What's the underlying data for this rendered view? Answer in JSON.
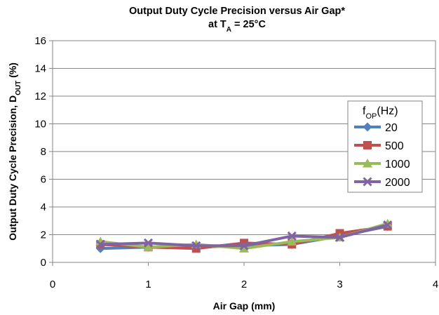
{
  "chart_data": {
    "type": "line",
    "title_line1": "Output Duty Cycle Precision  versus Air Gap*",
    "title_line2_prefix": "at T",
    "title_line2_sub": "A",
    "title_line2_suffix": " = 25°C",
    "xlabel": "Air Gap (mm)",
    "ylabel_prefix": "Output Duty Cycle  Precision,  D",
    "ylabel_sub": "OUT",
    "ylabel_suffix": " (%)",
    "xlim": [
      0,
      4
    ],
    "ylim": [
      0,
      16
    ],
    "x_ticks": [
      "0",
      "1",
      "2",
      "3",
      "4"
    ],
    "y_ticks": [
      "0",
      "2",
      "4",
      "6",
      "8",
      "10",
      "12",
      "14",
      "16"
    ],
    "grid": "horizontal",
    "legend_position": "right",
    "legend_title_prefix": "f",
    "legend_title_sub": "OP",
    "legend_title_suffix": "(Hz)",
    "x": [
      0.5,
      1.0,
      1.5,
      2.0,
      2.5,
      3.0,
      3.5
    ],
    "series": [
      {
        "name": "20",
        "color": "#4f81bd",
        "marker": "diamond",
        "values": [
          1.0,
          1.1,
          1.1,
          1.2,
          1.3,
          1.9,
          2.6
        ]
      },
      {
        "name": "500",
        "color": "#c0504d",
        "marker": "square",
        "values": [
          1.3,
          1.1,
          1.0,
          1.4,
          1.3,
          2.1,
          2.6
        ]
      },
      {
        "name": "1000",
        "color": "#9bbb59",
        "marker": "triangle",
        "values": [
          1.5,
          1.1,
          1.3,
          1.0,
          1.5,
          1.8,
          2.8
        ]
      },
      {
        "name": "2000",
        "color": "#8064a2",
        "marker": "x",
        "values": [
          1.3,
          1.4,
          1.2,
          1.2,
          1.9,
          1.8,
          2.7
        ]
      }
    ]
  }
}
